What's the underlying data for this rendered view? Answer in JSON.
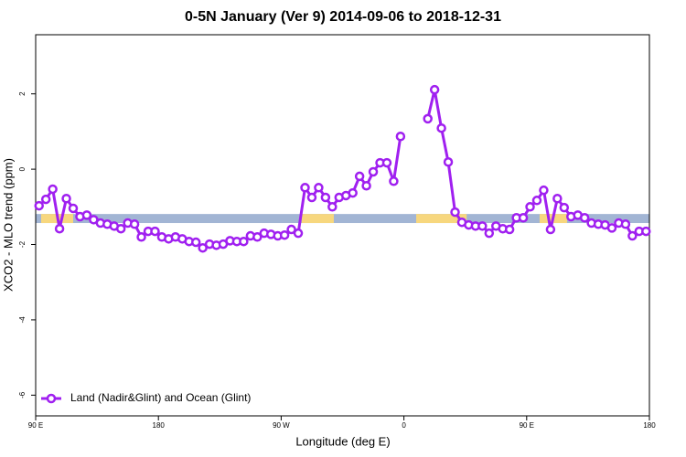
{
  "chart_data": {
    "type": "line",
    "title": "0-5N January (Ver 9)   2014-09-06 to 2018-12-31",
    "x_label": "Longitude (deg E)",
    "y_label": "XCO2 - MLO trend (ppm)",
    "xlim": [
      90,
      540
    ],
    "ylim": [
      -6.55,
      3.57
    ],
    "xticks": [
      {
        "value": 90,
        "label": "90 E"
      },
      180,
      {
        "value": 270,
        "label": "90 W"
      },
      {
        "value": 360,
        "label": "0"
      },
      {
        "value": 450,
        "label": "90 E"
      },
      {
        "value": 540,
        "label": "180"
      }
    ],
    "yticks": [
      2,
      0,
      -2,
      -4,
      -6
    ],
    "band": {
      "y": [
        -1.43,
        -1.19
      ],
      "ocean_color": "#a2b5d4",
      "land_color": "#f7d77e",
      "land": [
        [
          94,
          117.5
        ],
        [
          285,
          308.6
        ],
        [
          369,
          406
        ],
        [
          459.5,
          479.6
        ]
      ]
    },
    "legend": "bottom-left",
    "x": [
      92.5,
      97.5,
      102.5,
      107.5,
      112.5,
      117.5,
      122.5,
      127.5,
      132.5,
      137.5,
      142.5,
      147.5,
      152.5,
      157.5,
      162.5,
      167.5,
      172.5,
      177.5,
      182.5,
      187.5,
      192.5,
      197.5,
      202.5,
      207.5,
      212.5,
      217.5,
      222.5,
      227.5,
      232.5,
      237.5,
      242.5,
      247.5,
      252.5,
      257.5,
      262.5,
      267.5,
      272.5,
      277.5,
      282.5,
      287.5,
      292.5,
      297.5,
      302.5,
      307.5,
      312.5,
      317.5,
      322.5,
      327.5,
      332.5,
      337.5,
      342.5,
      347.5,
      352.5,
      357.5,
      362.5,
      367.5,
      372.5,
      377.5,
      382.5,
      387.5,
      392.5,
      397.5,
      402.5,
      407.5,
      412.5,
      417.5,
      422.5,
      427.5,
      432.5,
      437.5,
      442.5,
      447.5,
      452.5,
      457.5,
      462.5,
      467.5,
      472.5,
      477.5,
      482.5,
      487.5,
      492.5,
      497.5,
      502.5,
      507.5,
      512.5,
      517.5,
      522.5,
      527.5,
      532.5,
      537.5
    ],
    "series": [
      {
        "name": "Land (Nadir&Glint) and Ocean (Glint)",
        "color": "#a020f0",
        "values": [
          -0.97,
          -0.8,
          -0.53,
          -1.58,
          -0.78,
          -1.04,
          -1.26,
          -1.22,
          -1.34,
          -1.43,
          -1.46,
          -1.51,
          -1.58,
          -1.43,
          -1.46,
          -1.8,
          -1.65,
          -1.65,
          -1.8,
          -1.85,
          -1.8,
          -1.85,
          -1.92,
          -1.94,
          -2.09,
          -1.99,
          -2.02,
          -1.99,
          -1.9,
          -1.92,
          -1.92,
          -1.77,
          -1.8,
          -1.7,
          -1.73,
          -1.77,
          -1.75,
          -1.6,
          -1.7,
          -0.49,
          -0.75,
          -0.49,
          -0.75,
          -1.0,
          -0.75,
          -0.7,
          -0.63,
          -0.19,
          -0.44,
          -0.07,
          0.17,
          0.17,
          -0.32,
          0.87,
          null,
          null,
          null,
          1.34,
          2.11,
          1.09,
          0.19,
          -1.14,
          -1.41,
          -1.48,
          -1.51,
          -1.51,
          -1.7,
          -1.51,
          -1.58,
          -1.6,
          -1.29,
          -1.29,
          -1.0,
          -0.83,
          -0.56,
          -1.6,
          -0.78,
          -1.02,
          -1.26,
          -1.22,
          -1.29,
          -1.43,
          -1.46,
          -1.48,
          -1.56,
          -1.43,
          -1.46,
          -1.77,
          -1.65,
          -1.65
        ]
      }
    ]
  }
}
